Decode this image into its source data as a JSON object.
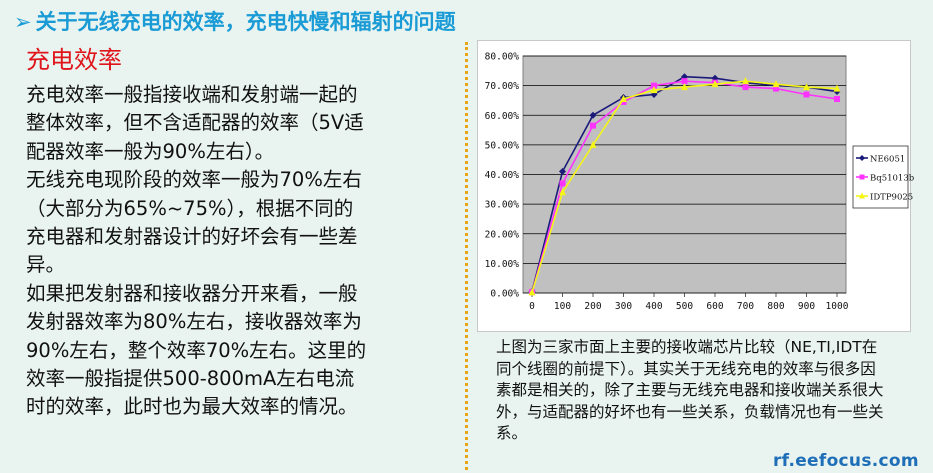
{
  "header": {
    "arrow": "➢",
    "title": "关于无线充电的效率，充电快慢和辐射的问题"
  },
  "section": {
    "heading": "充电效率",
    "paragraphs": [
      "充电效率一般指接收端和发射端一起的整体效率，但不含适配器的效率（5V适配器效率一般为90%左右）。",
      "无线充电现阶段的效率一般为70%左右（大部分为65%~75%），根据不同的充电器和发射器设计的好坏会有一些差异。",
      "如果把发射器和接收器分开来看，一般发射器效率为80%左右，接收器效率为90%左右，整个效率70%左右。这里的效率一般指提供500-800mA左右电流时的效率，此时也为最大效率的情况。"
    ]
  },
  "caption": {
    "paragraphs": [
      "上图为三家市面上主要的接收端芯片比较（NE,TI,IDT在同个线圈的前提下）。其实关于无线充电的效率与很多因素都是相关的，除了主要与无线充电器和接收端关系很大外，与适配器的好坏也有一些关系，负载情况也有一些关系。"
    ]
  },
  "watermark": "rf.eefocus.com",
  "colors": {
    "title": "#1a9bd6",
    "heading": "#e0141b",
    "plot_bg": "#c0c0c0",
    "NE6051": "#1a1a7a",
    "Bq51013b": "#ff33ff",
    "IDTP9025": "#f5f516"
  },
  "chart_data": {
    "type": "line",
    "x": [
      0,
      100,
      200,
      300,
      400,
      500,
      600,
      700,
      800,
      900,
      1000
    ],
    "xticks": [
      "0",
      "100",
      "200",
      "300",
      "400",
      "500",
      "600",
      "700",
      "800",
      "900",
      "1000"
    ],
    "yticks": [
      "0.00%",
      "10.00%",
      "20.00%",
      "30.00%",
      "40.00%",
      "50.00%",
      "60.00%",
      "70.00%",
      "80.00%"
    ],
    "ylim": [
      0,
      80
    ],
    "xlim": [
      0,
      1000
    ],
    "grid": true,
    "legend_position": "right",
    "series": [
      {
        "name": "NE6051",
        "marker": "diamond",
        "values": [
          0.5,
          41,
          60,
          66,
          67,
          73,
          72.5,
          71,
          70,
          69.5,
          68
        ]
      },
      {
        "name": "Bq51013b",
        "marker": "square",
        "values": [
          0.3,
          37,
          56.5,
          64.5,
          70,
          71.5,
          71,
          69.5,
          69,
          67,
          65.5
        ]
      },
      {
        "name": "IDTP9025",
        "marker": "triangle",
        "values": [
          0.2,
          34,
          50,
          65.5,
          68.5,
          69.5,
          70.5,
          71.5,
          70.5,
          69.5,
          69
        ]
      }
    ]
  }
}
